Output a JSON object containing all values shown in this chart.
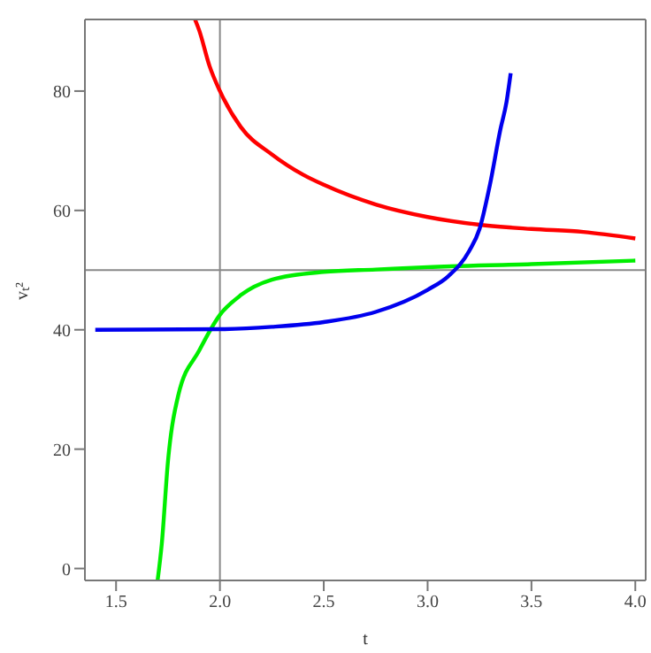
{
  "chart_data": {
    "type": "line",
    "xlabel": "t",
    "ylabel": "vₜ²",
    "xlim": [
      1.35,
      4.05
    ],
    "ylim": [
      -2,
      92
    ],
    "xticks": [
      {
        "value": 1.5,
        "label": "1.5"
      },
      {
        "value": 2,
        "label": "2.0"
      },
      {
        "value": 2.5,
        "label": "2.5"
      },
      {
        "value": 3,
        "label": "3.0"
      },
      {
        "value": 3.5,
        "label": "3.5"
      },
      {
        "value": 4,
        "label": "4.0"
      }
    ],
    "yticks": [
      0,
      20,
      40,
      60,
      80
    ],
    "marker": "none",
    "line_style": "solid",
    "series": [
      {
        "color": "#ff0000",
        "x": [
          1.88,
          1.9,
          1.95,
          2.0,
          2.1,
          2.25,
          2.4,
          2.5,
          2.75,
          3.0,
          3.25,
          3.5,
          3.75,
          4.0
        ],
        "values": [
          92,
          90.2,
          84.2,
          80,
          74,
          69.4,
          66,
          64.3,
          61,
          58.9,
          57.6,
          56.9,
          56.4,
          55.3
        ]
      },
      {
        "color": "#00ee00",
        "x": [
          1.7,
          1.72,
          1.75,
          1.8,
          1.9,
          2.0,
          2.1,
          2.25,
          2.5,
          2.75,
          3.0,
          3.5,
          4.0
        ],
        "values": [
          -2,
          4.1,
          18,
          29.1,
          36.5,
          42.5,
          45.8,
          48.4,
          49.7,
          50.1,
          50.5,
          51,
          51.6
        ]
      },
      {
        "color": "#0000ee",
        "x": [
          1.4,
          2.0,
          2.25,
          2.5,
          2.75,
          3.0,
          3.1,
          3.2,
          3.25,
          3.3,
          3.35,
          3.38,
          3.4
        ],
        "values": [
          40,
          40.1,
          40.5,
          41.3,
          43,
          46.7,
          49,
          53.2,
          56.9,
          64.3,
          73.5,
          78.2,
          83
        ]
      }
    ],
    "ref_lines": [
      {
        "axis": "x",
        "value": 2,
        "color": "#888888"
      },
      {
        "axis": "y",
        "value": 50,
        "color": "#888888"
      }
    ]
  }
}
